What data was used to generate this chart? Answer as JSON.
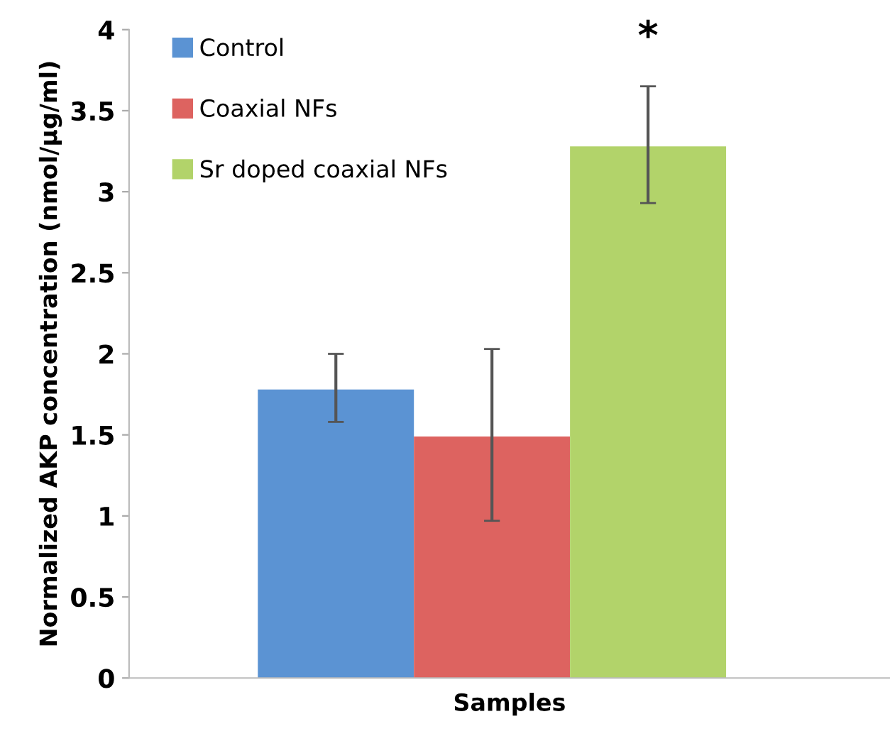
{
  "chart_data": {
    "type": "bar",
    "xlabel": "Samples",
    "ylabel": "Normalized AKP concentration (nmol/µg/ml)",
    "categories": [
      null
    ],
    "series": [
      {
        "name": "Control",
        "color": "#5b93d3",
        "values": [
          1.78
        ],
        "errors": [
          [
            1.58,
            2.0
          ]
        ]
      },
      {
        "name": "Coaxial NFs",
        "color": "#dd6360",
        "values": [
          1.49
        ],
        "errors": [
          [
            0.97,
            2.03
          ]
        ]
      },
      {
        "name": "Sr doped coaxial NFs",
        "color": "#b2d36a",
        "values": [
          3.28
        ],
        "errors": [
          [
            2.93,
            3.65
          ]
        ]
      }
    ],
    "ylim": [
      0,
      4
    ],
    "yticks": [
      0,
      0.5,
      1,
      1.5,
      2,
      2.5,
      3,
      3.5,
      4
    ],
    "annotations": [
      "*"
    ],
    "legend": "top left",
    "grid": false
  }
}
